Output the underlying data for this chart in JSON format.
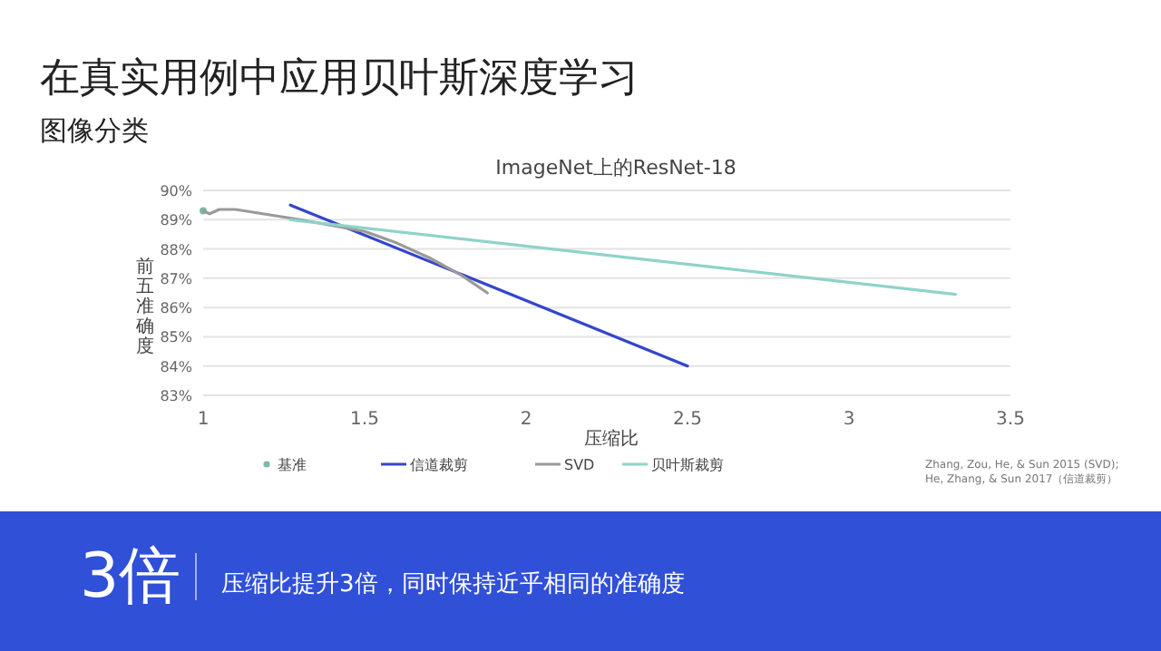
{
  "chart_data": {
    "type": "line",
    "title": "ImageNet上的ResNet-18",
    "xlabel": "压缩比",
    "ylabel": "前五准确度",
    "annotations": [
      "在真实用例中应用贝叶斯深度学习",
      "图像分类",
      "Zhang, Zou, He, & Sun 2015 (SVD);",
      "He, Zhang, & Sun 2017（信道裁剪）",
      "3倍",
      "压缩比提升3倍，同时保持近乎相同的准确度"
    ],
    "xlim": [
      1,
      3.5
    ],
    "xticks": [
      1,
      1.5,
      2,
      2.5,
      3,
      3.5
    ],
    "ylim": [
      83,
      90
    ],
    "yticks": [
      {
        "value": 83,
        "label": "83%"
      },
      {
        "value": 84,
        "label": "84%"
      },
      {
        "value": 85,
        "label": "85%"
      },
      {
        "value": 86,
        "label": "86%"
      },
      {
        "value": 87,
        "label": "87%"
      },
      {
        "value": 88,
        "label": "88%"
      },
      {
        "value": 89,
        "label": "89%"
      },
      {
        "value": 90,
        "label": "90%"
      }
    ],
    "grid": "y",
    "legend": "bottom",
    "series": [
      {
        "name": "基准",
        "type": "scatter",
        "marker": "circle",
        "color": "#7fb8a8",
        "x": [
          1
        ],
        "values": [
          89.3
        ]
      },
      {
        "name": "信道裁剪",
        "color": "#3346cc",
        "x": [
          1.27,
          2.5
        ],
        "values": [
          89.5,
          84.0
        ]
      },
      {
        "name": "SVD",
        "color": "#9a9a9a",
        "x": [
          1,
          1.02,
          1.05,
          1.1,
          1.3,
          1.5,
          1.6,
          1.7,
          1.8,
          1.88
        ],
        "values": [
          89.3,
          89.2,
          89.35,
          89.35,
          89.0,
          88.6,
          88.2,
          87.7,
          87.1,
          86.5
        ]
      },
      {
        "name": "贝叶斯裁剪",
        "color": "#8fd3c8",
        "x": [
          1.27,
          3.33
        ],
        "values": [
          89.0,
          86.45
        ]
      }
    ]
  }
}
